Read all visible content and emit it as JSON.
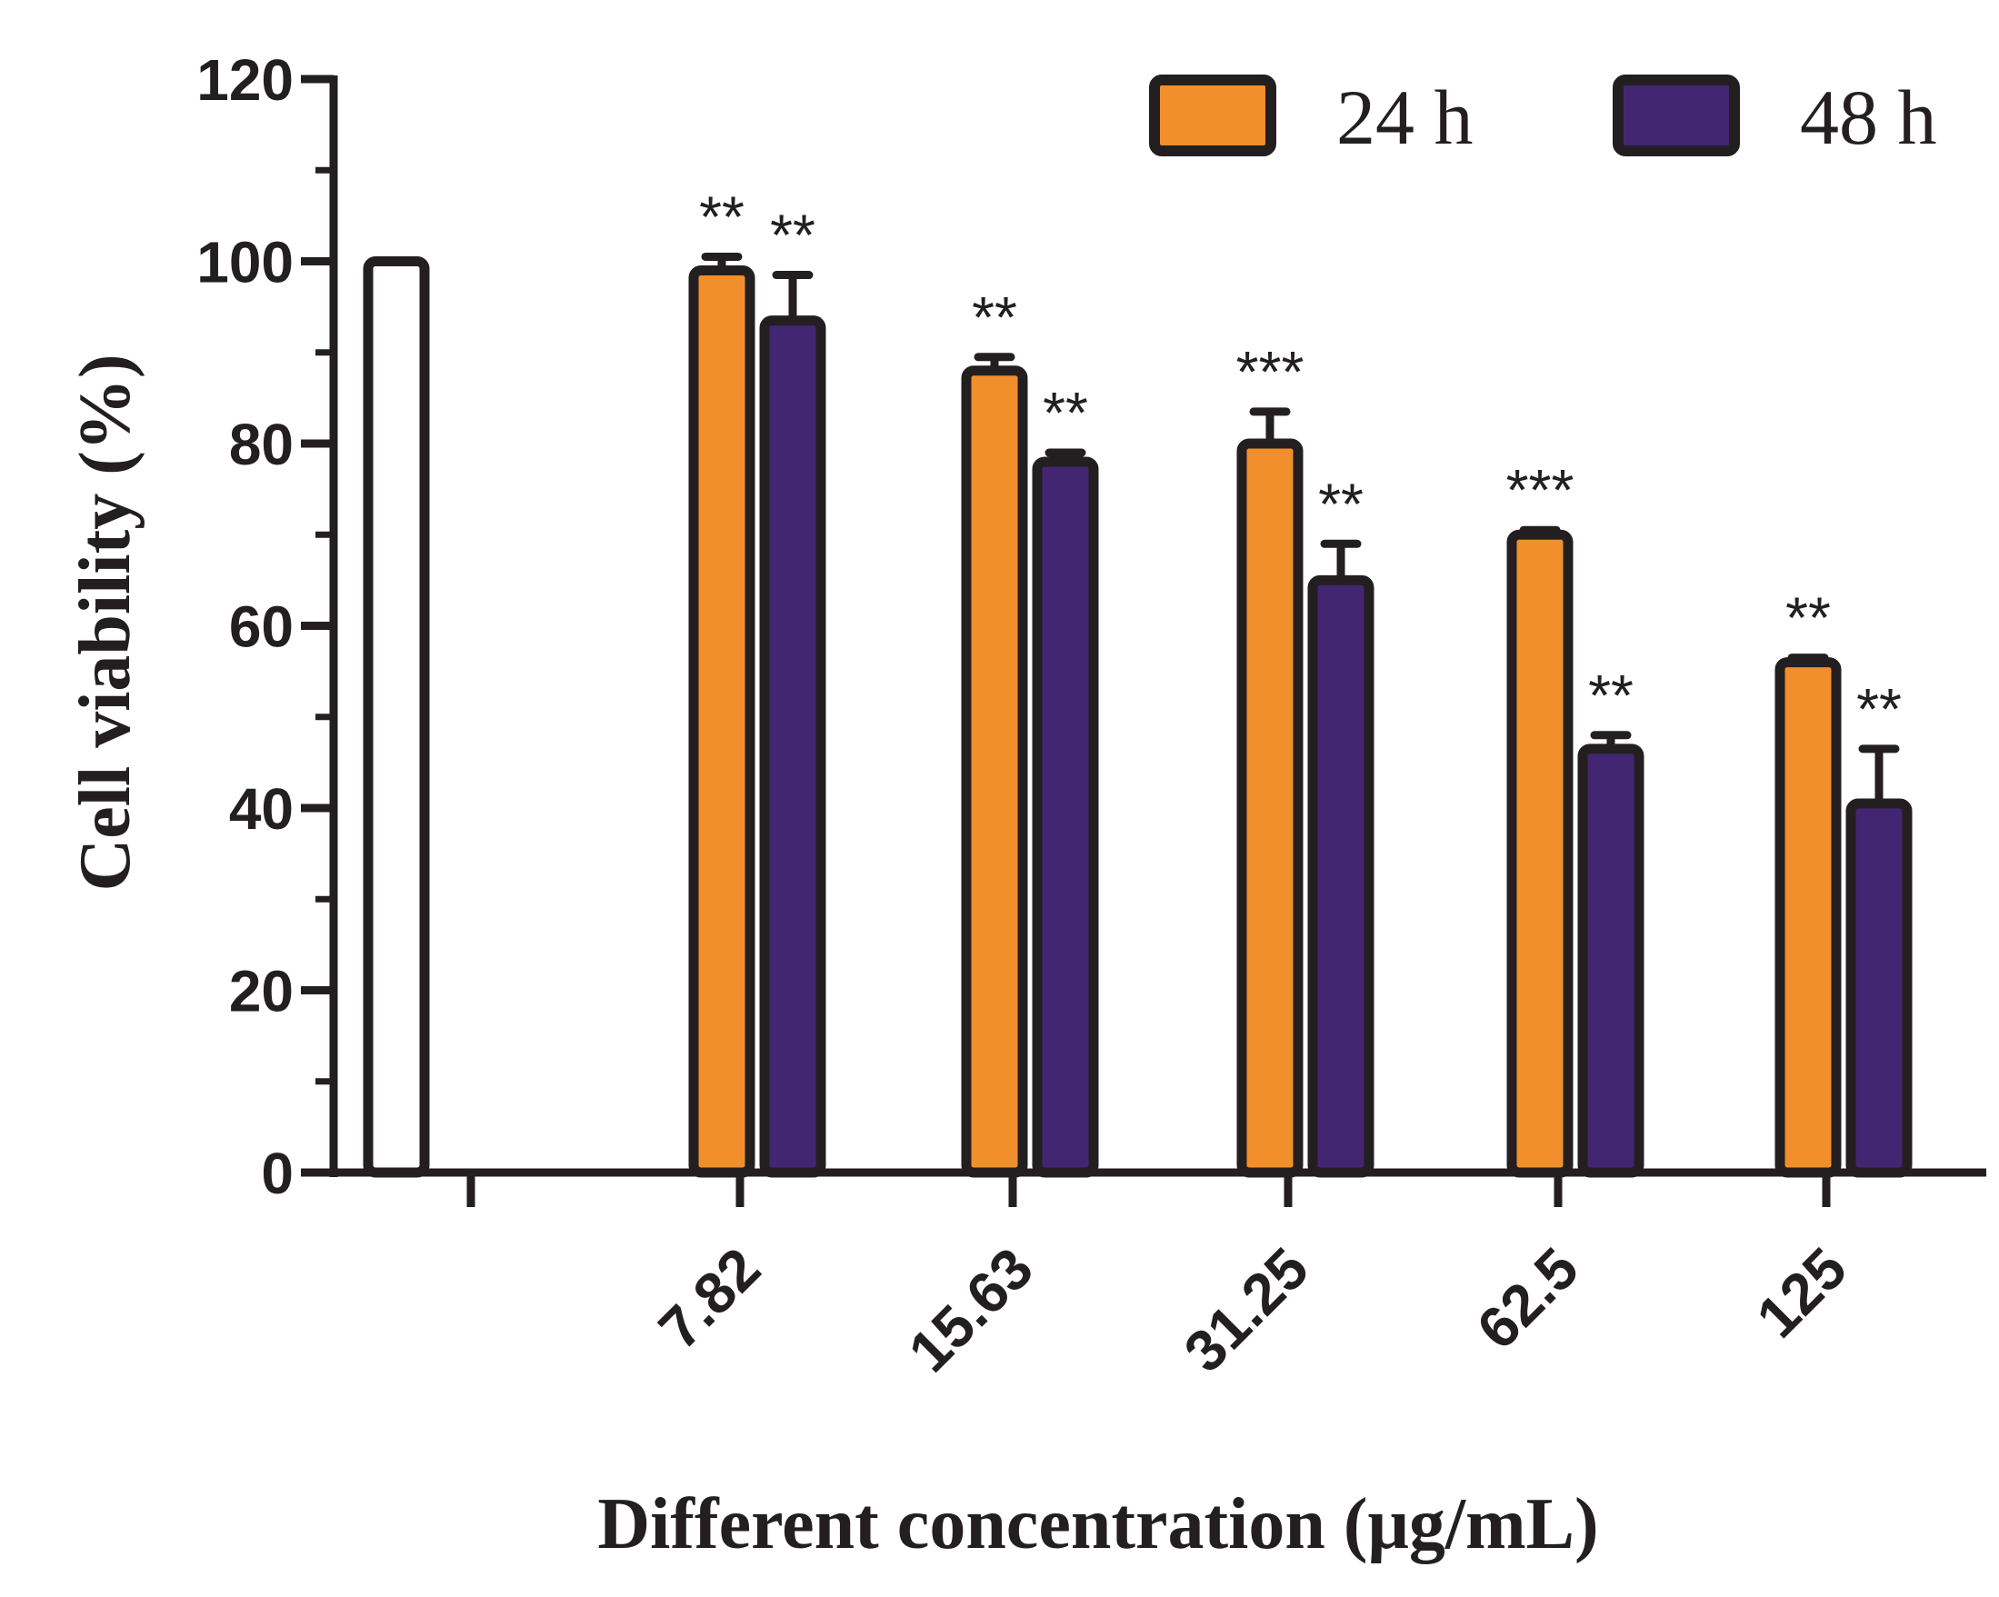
{
  "chart_data": {
    "type": "bar",
    "title": "",
    "xlabel": "Different concentration (μg/mL)",
    "ylabel": "Cell viability (%)",
    "ylim": [
      0,
      120
    ],
    "yticks": [
      0,
      20,
      40,
      60,
      80,
      100,
      120
    ],
    "grid": false,
    "legend_position": "top-right",
    "control": {
      "label": "",
      "value": 100,
      "color": "#ffffff"
    },
    "categories": [
      "7.82",
      "15.63",
      "31.25",
      "62.5",
      "125"
    ],
    "series": [
      {
        "name": "24 h",
        "color": "#f18f2c",
        "values": [
          99,
          88,
          80,
          70,
          56
        ],
        "errors": [
          1.5,
          1.5,
          3.5,
          0.5,
          0.5
        ],
        "significance": [
          "**",
          "**",
          "***",
          "***",
          "**"
        ]
      },
      {
        "name": "48 h",
        "color": "#432672",
        "values": [
          93.5,
          78,
          65,
          46.5,
          40.5
        ],
        "errors": [
          5,
          1,
          4,
          1.5,
          6
        ],
        "significance": [
          "**",
          "**",
          "**",
          "**",
          "**"
        ]
      }
    ]
  }
}
